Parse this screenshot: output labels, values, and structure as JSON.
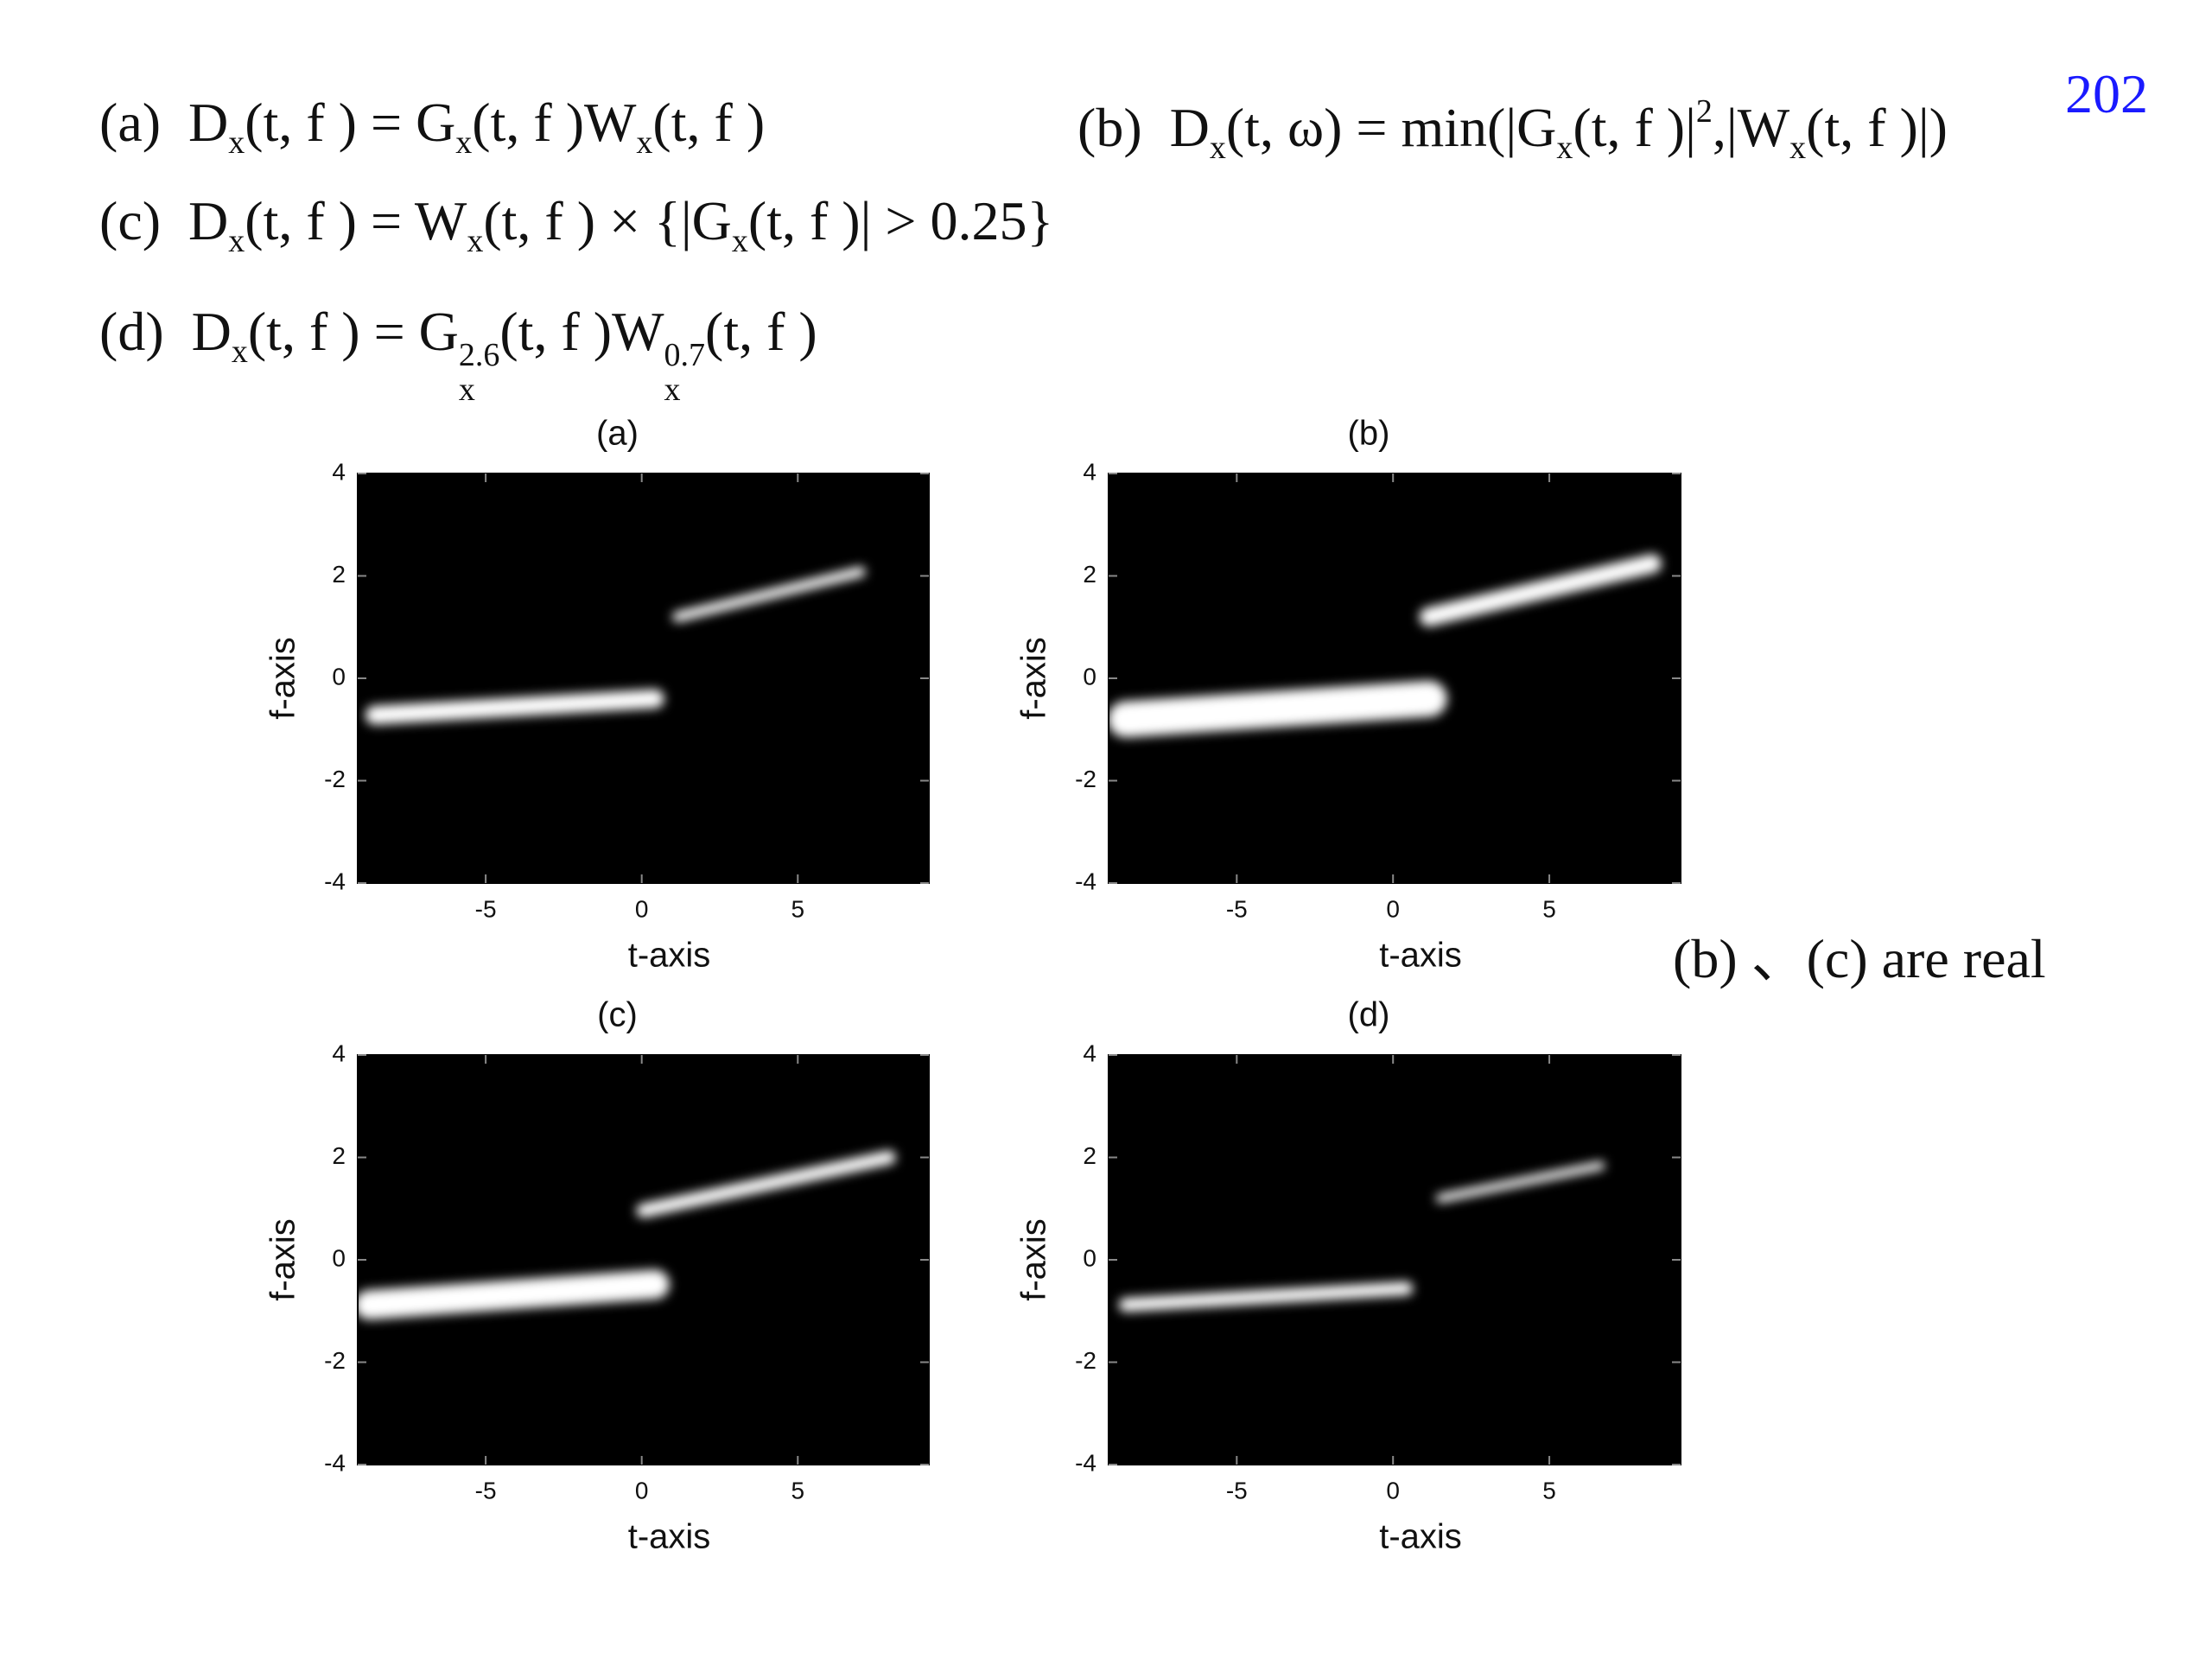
{
  "page_number": "202",
  "note": "(b) 、(c) are real",
  "equations": [
    [
      "(a)  D",
      {
        "sub": "x"
      },
      "(t, f ) = G",
      {
        "sub": "x"
      },
      "(t, f )W",
      {
        "sub": "x"
      },
      "(t, f )"
    ],
    [
      "(b)  D",
      {
        "sub": "x"
      },
      "(t, ω) = min(|G",
      {
        "sub": "x"
      },
      "(t, f )|",
      {
        "sup": "2"
      },
      ",|W",
      {
        "sub": "x"
      },
      "(t, f )|)"
    ],
    [
      "(c)  D",
      {
        "sub": "x"
      },
      "(t, f ) = W",
      {
        "sub": "x"
      },
      "(t, f ) × {|G",
      {
        "sub": "x"
      },
      "(t, f )| > 0.25}"
    ],
    [
      "(d)  D",
      {
        "sub": "x"
      },
      "(t, f ) = G",
      {
        "sup": "2.6",
        "sub": "x"
      },
      "(t, f )W",
      {
        "sup": "0.7",
        "sub": "x"
      },
      "(t, f )"
    ]
  ],
  "chart_data": [
    {
      "type": "image",
      "title": "(a)",
      "x_label": "t-axis",
      "y_label": "f-axis",
      "xlim": [
        -9.1,
        9.2
      ],
      "ylim": [
        -4,
        4
      ],
      "xticks": [
        -5,
        0,
        5
      ],
      "yticks": [
        -4,
        -2,
        0,
        2,
        4
      ]
    },
    {
      "type": "image",
      "title": "(b)",
      "x_label": "t-axis",
      "y_label": "f-axis",
      "xlim": [
        -9.1,
        9.2
      ],
      "ylim": [
        -4,
        4
      ],
      "xticks": [
        -5,
        0,
        5
      ],
      "yticks": [
        -4,
        -2,
        0,
        2,
        4
      ]
    },
    {
      "type": "image",
      "title": "(c)",
      "x_label": "t-axis",
      "y_label": "f-axis",
      "xlim": [
        -9.1,
        9.2
      ],
      "ylim": [
        -4,
        4
      ],
      "xticks": [
        -5,
        0,
        5
      ],
      "yticks": [
        -4,
        -2,
        0,
        2,
        4
      ]
    },
    {
      "type": "image",
      "title": "(d)",
      "x_label": "t-axis",
      "y_label": "f-axis",
      "xlim": [
        -9.1,
        9.2
      ],
      "ylim": [
        -4,
        4
      ],
      "xticks": [
        -5,
        0,
        5
      ],
      "yticks": [
        -4,
        -2,
        0,
        2,
        4
      ]
    }
  ]
}
